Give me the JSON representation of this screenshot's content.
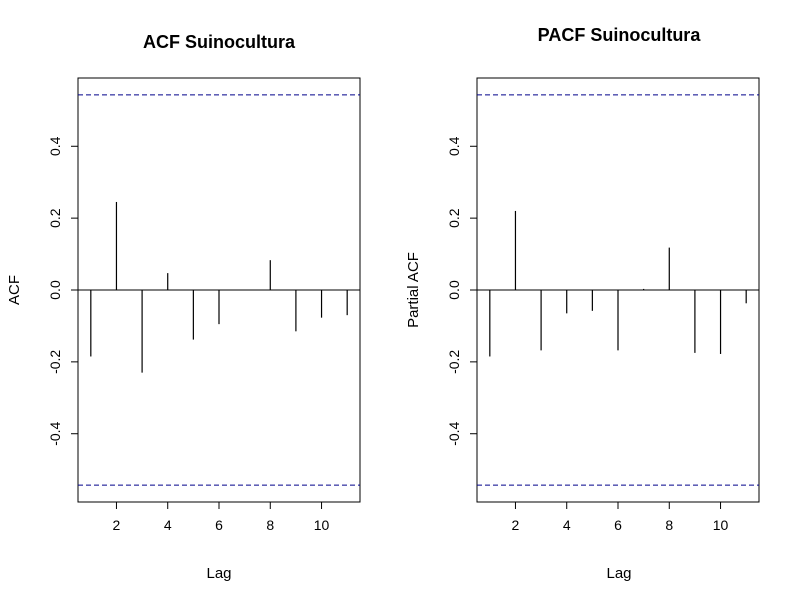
{
  "chart_data": [
    {
      "type": "bar",
      "subtype": "acf-stem",
      "title": "ACF Suinocultura",
      "xlabel": "Lag",
      "ylabel": "ACF",
      "x": [
        1,
        2,
        3,
        4,
        5,
        6,
        7,
        8,
        9,
        10,
        11
      ],
      "values": [
        -0.185,
        0.245,
        -0.23,
        0.047,
        -0.138,
        -0.095,
        0.0,
        0.083,
        -0.115,
        -0.077,
        -0.07
      ],
      "xlim": [
        0.5,
        11.5
      ],
      "ylim": [
        -0.59,
        0.59
      ],
      "xticks": [
        "2",
        "4",
        "6",
        "8",
        "10"
      ],
      "yticks": [
        "-0.4",
        "-0.2",
        "0.0",
        "0.2",
        "0.4"
      ],
      "confidence_band": 0.543,
      "band_color": "#00008b",
      "grid": false
    },
    {
      "type": "bar",
      "subtype": "pacf-stem",
      "title": "PACF Suinocultura",
      "xlabel": "Lag",
      "ylabel": "Partial ACF",
      "x": [
        1,
        2,
        3,
        4,
        5,
        6,
        7,
        8,
        9,
        10,
        11
      ],
      "values": [
        -0.185,
        0.22,
        -0.168,
        -0.065,
        -0.058,
        -0.168,
        0.003,
        0.118,
        -0.175,
        -0.178,
        -0.037
      ],
      "xlim": [
        0.5,
        11.5
      ],
      "ylim": [
        -0.59,
        0.59
      ],
      "xticks": [
        "2",
        "4",
        "6",
        "8",
        "10"
      ],
      "yticks": [
        "-0.4",
        "-0.2",
        "0.0",
        "0.2",
        "0.4"
      ],
      "confidence_band": 0.543,
      "band_color": "#00008b",
      "grid": false
    }
  ]
}
